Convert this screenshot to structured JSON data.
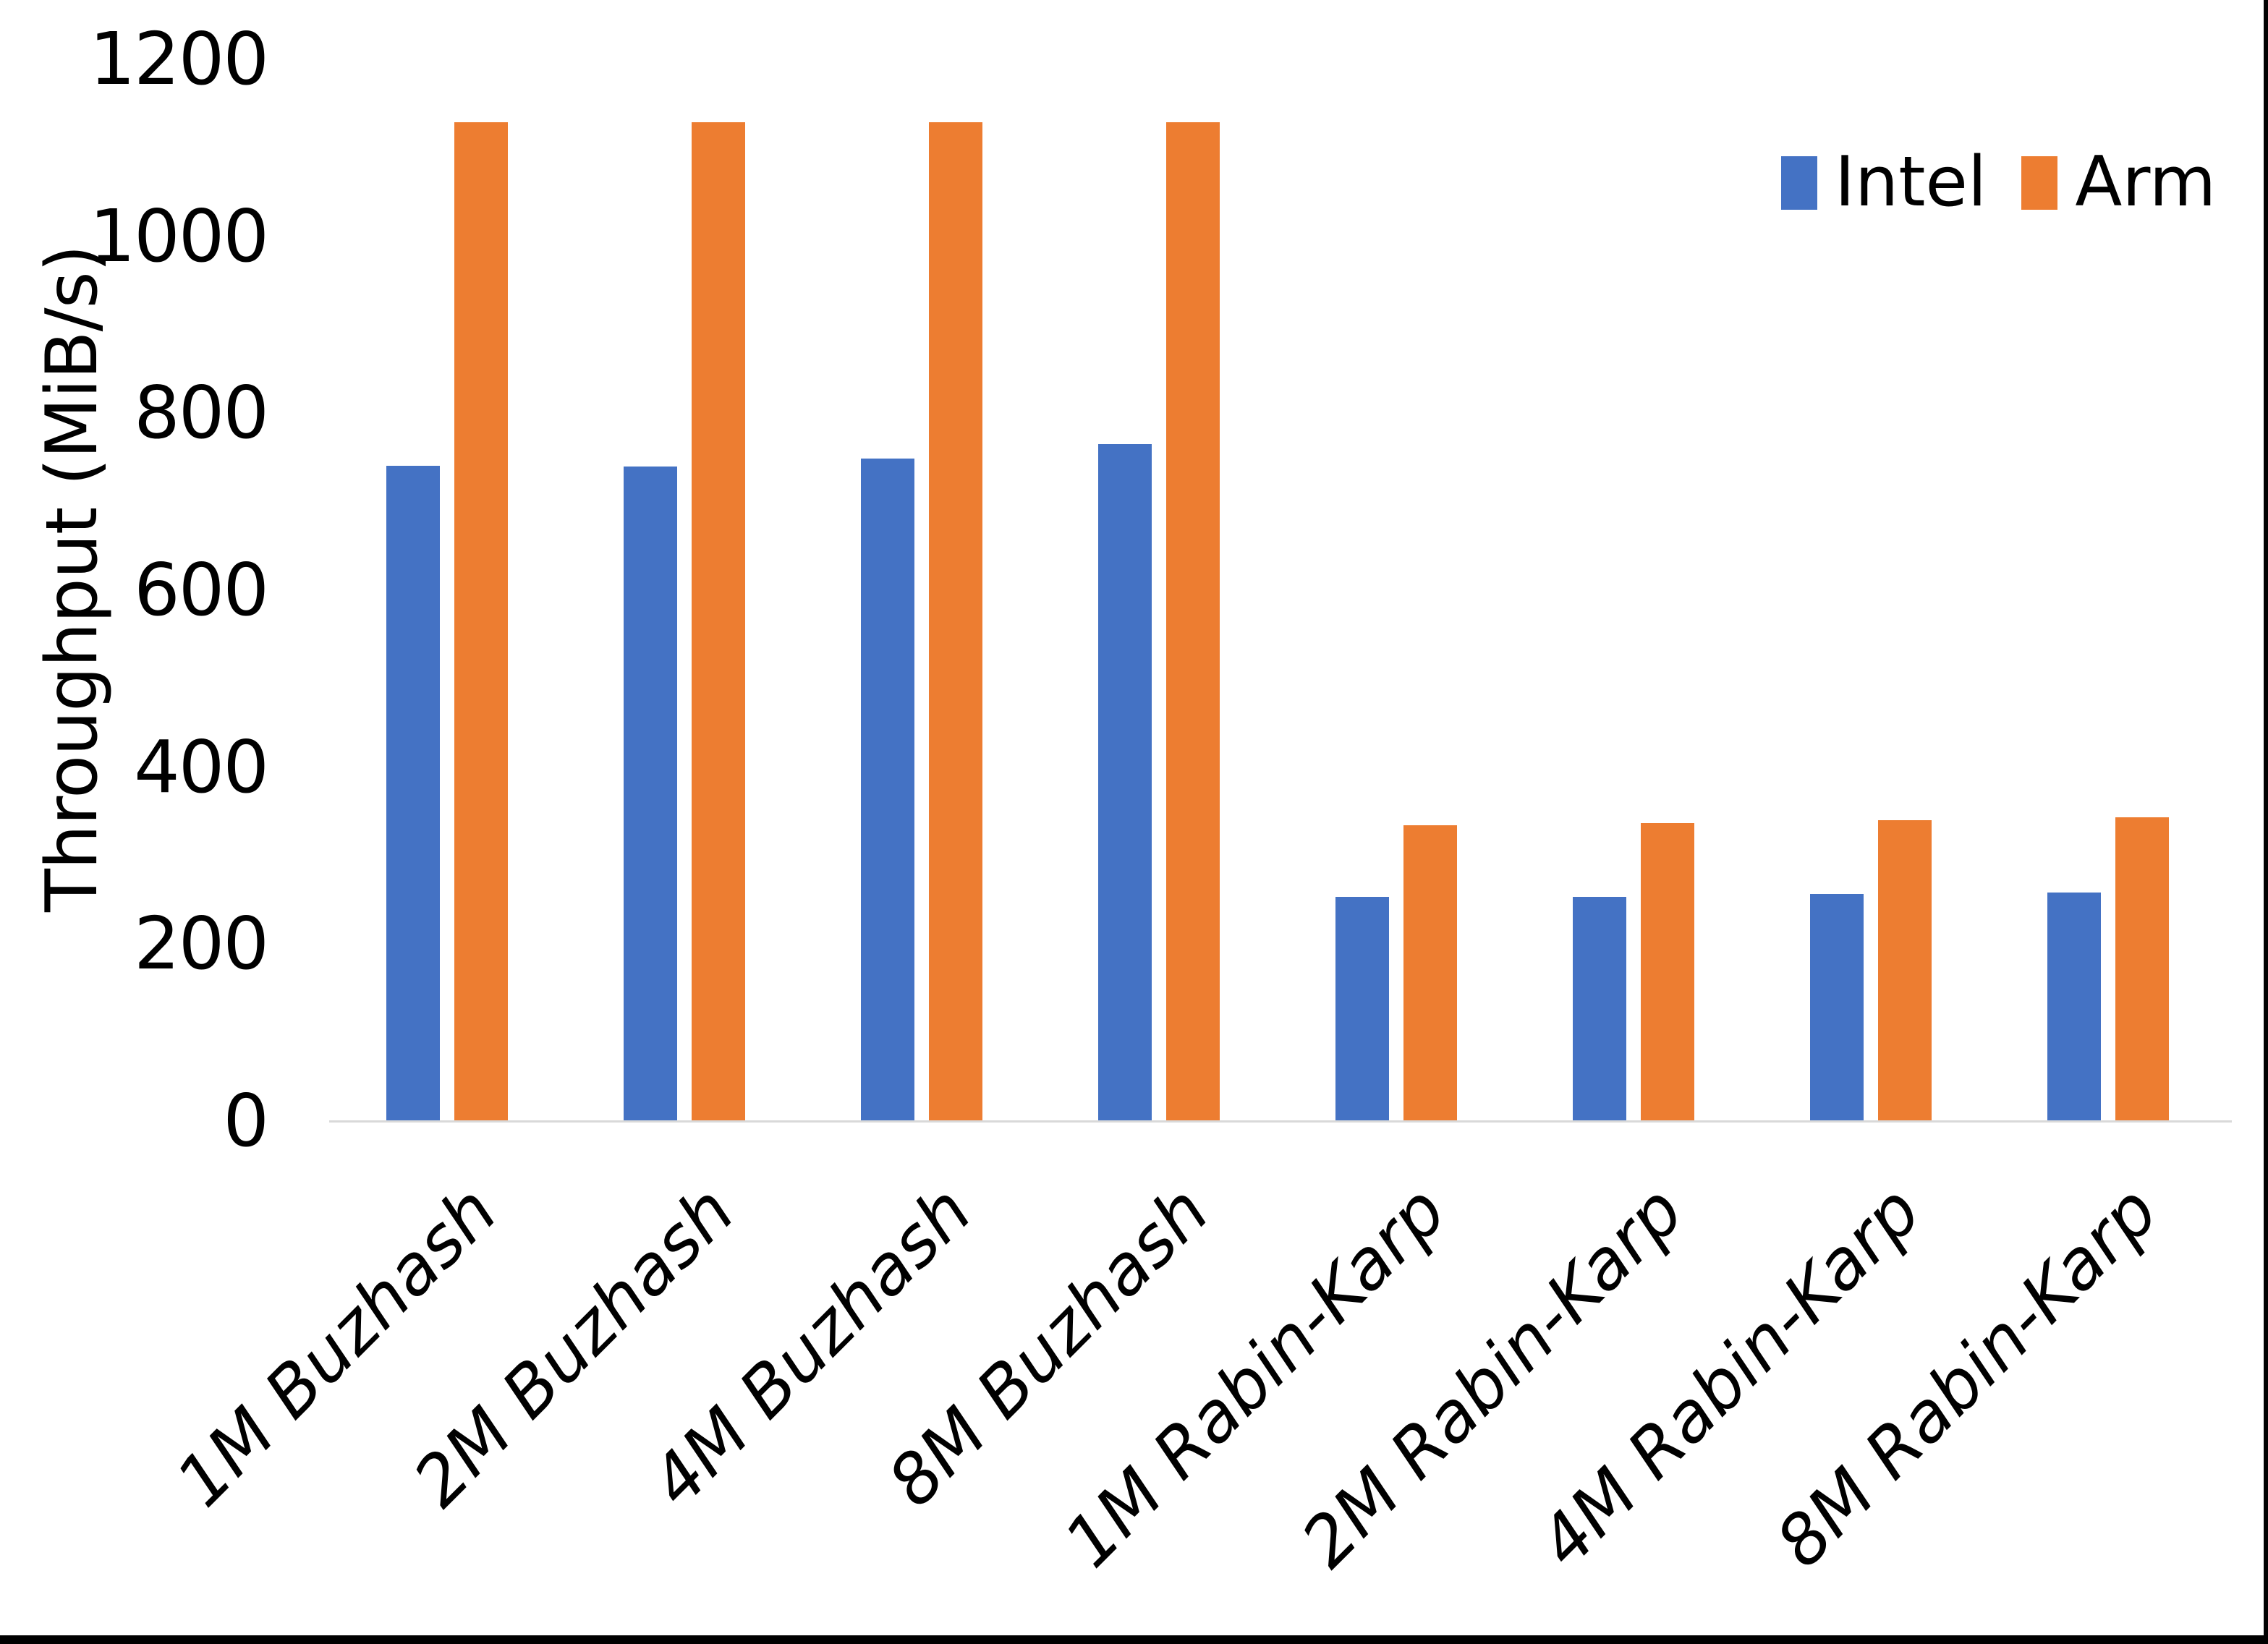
{
  "page": {
    "background": "#FFFFFF",
    "edge_color": "#000000"
  },
  "chart_data": {
    "type": "bar",
    "title": "",
    "xlabel": "",
    "ylabel": "Throughput (MiB/s)",
    "ylim": [
      0,
      1200
    ],
    "yticks": [
      0,
      200,
      400,
      600,
      800,
      1000,
      1200
    ],
    "grid": false,
    "legend_position": "top-right",
    "axis_line_color": "#D9D9D9",
    "categories": [
      "1M Buzhash",
      "2M Buzhash",
      "4M Buzhash",
      "8M Buzhash",
      "1M Rabin-Karp",
      "2M Rabin-Karp",
      "4M Rabin-Karp",
      "8M Rabin-Karp"
    ],
    "series": [
      {
        "name": "Intel",
        "color": "#4472C4",
        "values": [
          741,
          740,
          749,
          765,
          253,
          253,
          257,
          258
        ]
      },
      {
        "name": "Arm",
        "color": "#ED7D31",
        "values": [
          1129,
          1129,
          1129,
          1129,
          334,
          337,
          340,
          343
        ]
      }
    ]
  }
}
